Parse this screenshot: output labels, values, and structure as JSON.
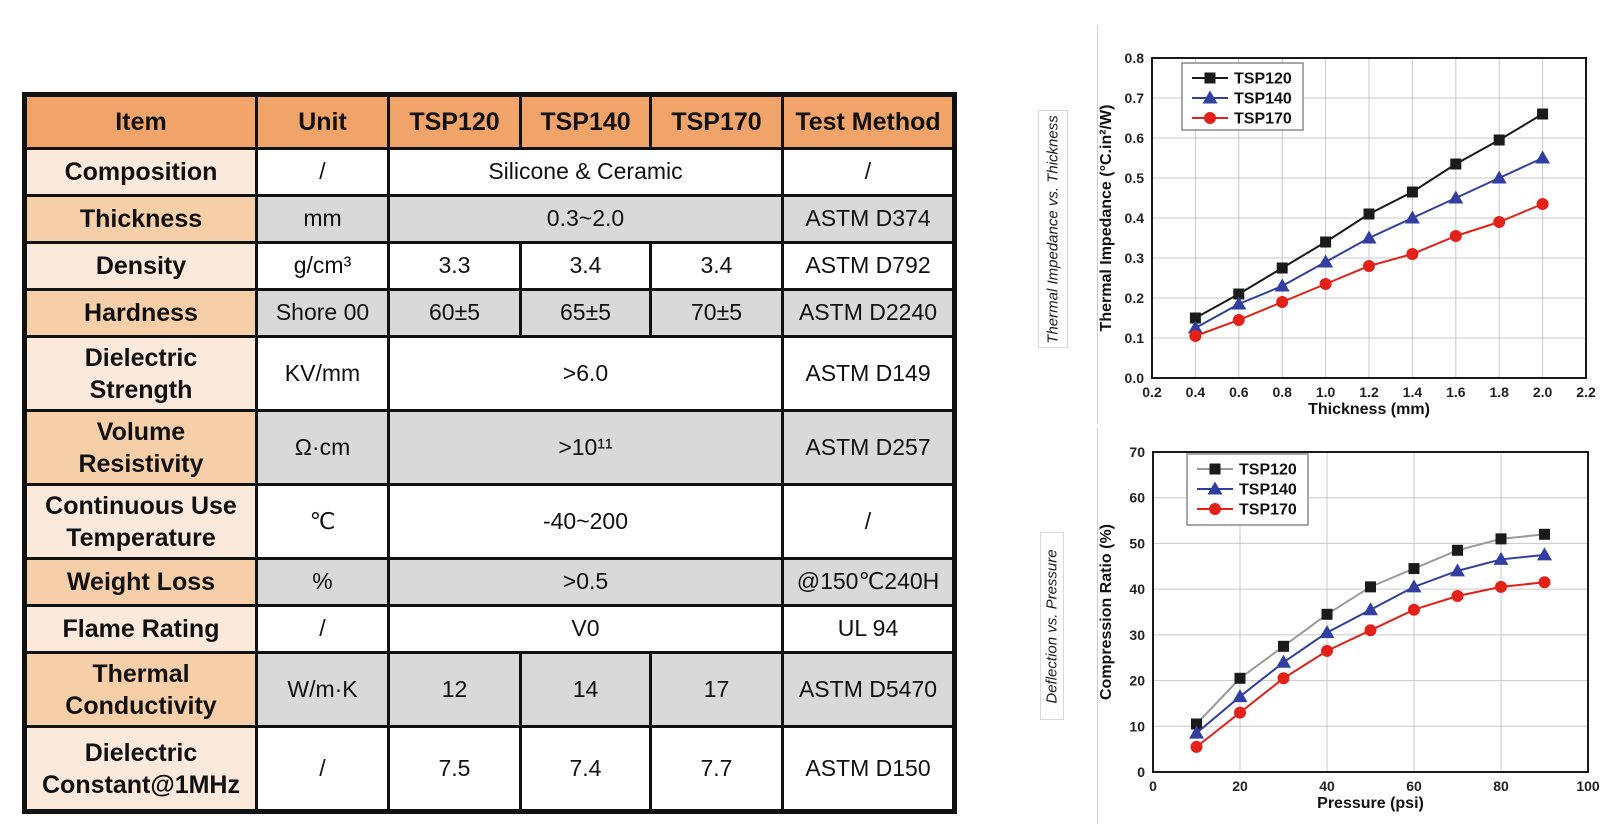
{
  "table": {
    "headers": [
      "Item",
      "Unit",
      "TSP120",
      "TSP140",
      "TSP170",
      "Test Method"
    ],
    "rows": [
      {
        "item": "Composition",
        "unit": "/",
        "span": "Silicone & Ceramic",
        "test": "/",
        "shade": "light"
      },
      {
        "item": "Thickness",
        "unit": "mm",
        "span": "0.3~2.0",
        "test": "ASTM D374",
        "shade": "dark"
      },
      {
        "item": "Density",
        "unit": "g/cm³",
        "values": [
          "3.3",
          "3.4",
          "3.4"
        ],
        "test": "ASTM D792",
        "shade": "light"
      },
      {
        "item": "Hardness",
        "unit": "Shore 00",
        "values": [
          "60±5",
          "65±5",
          "70±5"
        ],
        "test": "ASTM D2240",
        "shade": "dark"
      },
      {
        "item": "Dielectric Strength",
        "unit": "KV/mm",
        "span": ">6.0",
        "test": "ASTM D149",
        "shade": "light"
      },
      {
        "item": "Volume Resistivity",
        "unit": "Ω·cm",
        "span": ">10¹¹",
        "test": "ASTM D257",
        "shade": "dark"
      },
      {
        "item": "Continuous Use Temperature",
        "unit": "℃",
        "span": "-40~200",
        "test": "/",
        "shade": "light"
      },
      {
        "item": "Weight Loss",
        "unit": "%",
        "span": ">0.5",
        "test": "@150℃240H",
        "shade": "dark"
      },
      {
        "item": "Flame Rating",
        "unit": "/",
        "span": "V0",
        "test": "UL 94",
        "shade": "light"
      },
      {
        "item": "Thermal Conductivity",
        "unit": "W/m·K",
        "values": [
          "12",
          "14",
          "17"
        ],
        "test": "ASTM D5470",
        "shade": "dark"
      },
      {
        "item": "Dielectric Constant@1MHz",
        "unit": "/",
        "values": [
          "7.5",
          "7.4",
          "7.7"
        ],
        "test": "ASTM D150",
        "shade": "light"
      }
    ]
  },
  "colors": {
    "header_orange": "#F0A46A",
    "item_light_peach": "#FBE9DC",
    "item_dark_peach": "#F6CFA9",
    "row_gray": "#D9D9D9",
    "series_black": "#1a1a1a",
    "series_blue": "#313FA0",
    "series_red": "#E32119",
    "grid_gray": "#C8C8C8"
  },
  "chart_data": [
    {
      "type": "line",
      "panel_label": "Thermal Impedance vs. Thickness",
      "xlabel": "Thickness (mm)",
      "ylabel": "Thermal Impedance (°C.in²/W)",
      "xlim": [
        0.2,
        2.2
      ],
      "ylim": [
        0.0,
        0.8
      ],
      "xticks": [
        "0.2",
        "0.4",
        "0.6",
        "0.8",
        "1.0",
        "1.2",
        "1.4",
        "1.6",
        "1.8",
        "2.0",
        "2.2"
      ],
      "yticks": [
        "0.0",
        "0.1",
        "0.2",
        "0.3",
        "0.4",
        "0.5",
        "0.6",
        "0.7",
        "0.8"
      ],
      "grid": true,
      "legend_position": "top-left",
      "x": [
        0.4,
        0.6,
        0.8,
        1.0,
        1.2,
        1.4,
        1.6,
        1.8,
        2.0
      ],
      "series": [
        {
          "name": "TSP120",
          "marker": "square",
          "color": "#1a1a1a",
          "line_color": "#1a1a1a",
          "values": [
            0.15,
            0.21,
            0.275,
            0.34,
            0.41,
            0.465,
            0.535,
            0.595,
            0.66
          ]
        },
        {
          "name": "TSP140",
          "marker": "triangle",
          "color": "#313FA0",
          "line_color": "#313FA0",
          "values": [
            0.125,
            0.185,
            0.23,
            0.29,
            0.35,
            0.4,
            0.45,
            0.5,
            0.55
          ]
        },
        {
          "name": "TSP170",
          "marker": "circle",
          "color": "#E32119",
          "line_color": "#E32119",
          "values": [
            0.105,
            0.145,
            0.19,
            0.235,
            0.28,
            0.31,
            0.355,
            0.39,
            0.435
          ]
        }
      ]
    },
    {
      "type": "line",
      "panel_label": "Deflection vs. Pressure",
      "xlabel": "Pressure (psi)",
      "ylabel": "Compression Ratio (%)",
      "xlim": [
        0,
        100
      ],
      "ylim": [
        0,
        70
      ],
      "xticks": [
        "0",
        "20",
        "40",
        "60",
        "80",
        "100"
      ],
      "yticks": [
        "0",
        "10",
        "20",
        "30",
        "40",
        "50",
        "60",
        "70"
      ],
      "grid": true,
      "legend_position": "top-left",
      "x": [
        10,
        20,
        30,
        40,
        50,
        60,
        70,
        80,
        90
      ],
      "series": [
        {
          "name": "TSP120",
          "marker": "square",
          "color": "#1a1a1a",
          "line_color": "#9A9A9A",
          "values": [
            10.5,
            20.5,
            27.5,
            34.5,
            40.5,
            44.5,
            48.5,
            51,
            52
          ]
        },
        {
          "name": "TSP140",
          "marker": "triangle",
          "color": "#313FA0",
          "line_color": "#313FA0",
          "values": [
            8.5,
            16.5,
            24,
            30.5,
            35.5,
            40.5,
            44,
            46.5,
            47.5
          ]
        },
        {
          "name": "TSP170",
          "marker": "circle",
          "color": "#E32119",
          "line_color": "#E32119",
          "values": [
            5.5,
            13,
            20.5,
            26.5,
            31,
            35.5,
            38.5,
            40.5,
            41.5
          ]
        }
      ]
    }
  ]
}
